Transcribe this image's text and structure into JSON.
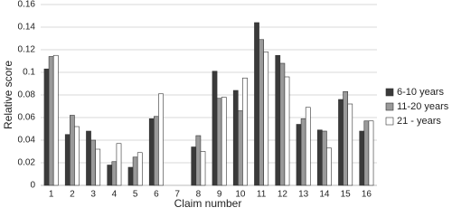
{
  "chart_data": {
    "type": "bar",
    "y_label": "Relative score",
    "x_label": "Claim number",
    "categories": [
      "1",
      "2",
      "3",
      "4",
      "5",
      "6",
      "7",
      "8",
      "9",
      "10",
      "11",
      "12",
      "13",
      "14",
      "15",
      "16"
    ],
    "series": [
      {
        "name": "6-10 years",
        "color": "#3a3a3a",
        "values": [
          0.103,
          0.045,
          0.048,
          0.018,
          0.016,
          0.059,
          null,
          0.034,
          0.101,
          0.084,
          0.144,
          0.115,
          0.054,
          0.049,
          0.076,
          0.048
        ]
      },
      {
        "name": "11-20 years",
        "color": "#9a9a9a",
        "values": [
          0.114,
          0.062,
          0.04,
          0.021,
          0.025,
          0.061,
          null,
          0.044,
          0.077,
          0.066,
          0.129,
          0.108,
          0.059,
          0.048,
          0.083,
          0.057
        ]
      },
      {
        "name": "21 - years",
        "color": "#ffffff",
        "values": [
          0.115,
          0.052,
          0.032,
          0.037,
          0.029,
          0.081,
          null,
          0.03,
          0.078,
          0.095,
          0.118,
          0.096,
          0.069,
          0.033,
          0.072,
          0.057
        ]
      }
    ],
    "ylim": [
      0,
      0.16
    ],
    "yticks": [
      0,
      0.02,
      0.04,
      0.06,
      0.08,
      0.1,
      0.12,
      0.14,
      0.16
    ],
    "grid": true,
    "legend": "right"
  }
}
